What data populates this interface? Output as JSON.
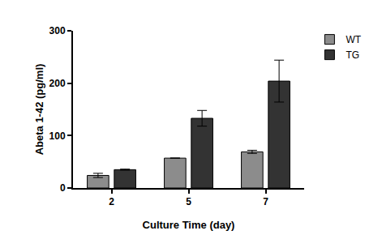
{
  "chart_data": {
    "type": "bar",
    "x_label": "Culture Time (day)",
    "y_label": "Abeta 1-42 (pg/ml)",
    "categories": [
      "2",
      "5",
      "7"
    ],
    "series": [
      {
        "name": "WT",
        "color": "#8c8c8c",
        "values": [
          24,
          57,
          69
        ],
        "errors": [
          4,
          0,
          3
        ]
      },
      {
        "name": "TG",
        "color": "#333333",
        "values": [
          35,
          133,
          204
        ],
        "errors": [
          1,
          15,
          40
        ]
      }
    ],
    "ylim": [
      0,
      300
    ],
    "yticks": [
      0,
      100,
      200,
      300
    ],
    "grid": false,
    "legend": "right"
  }
}
